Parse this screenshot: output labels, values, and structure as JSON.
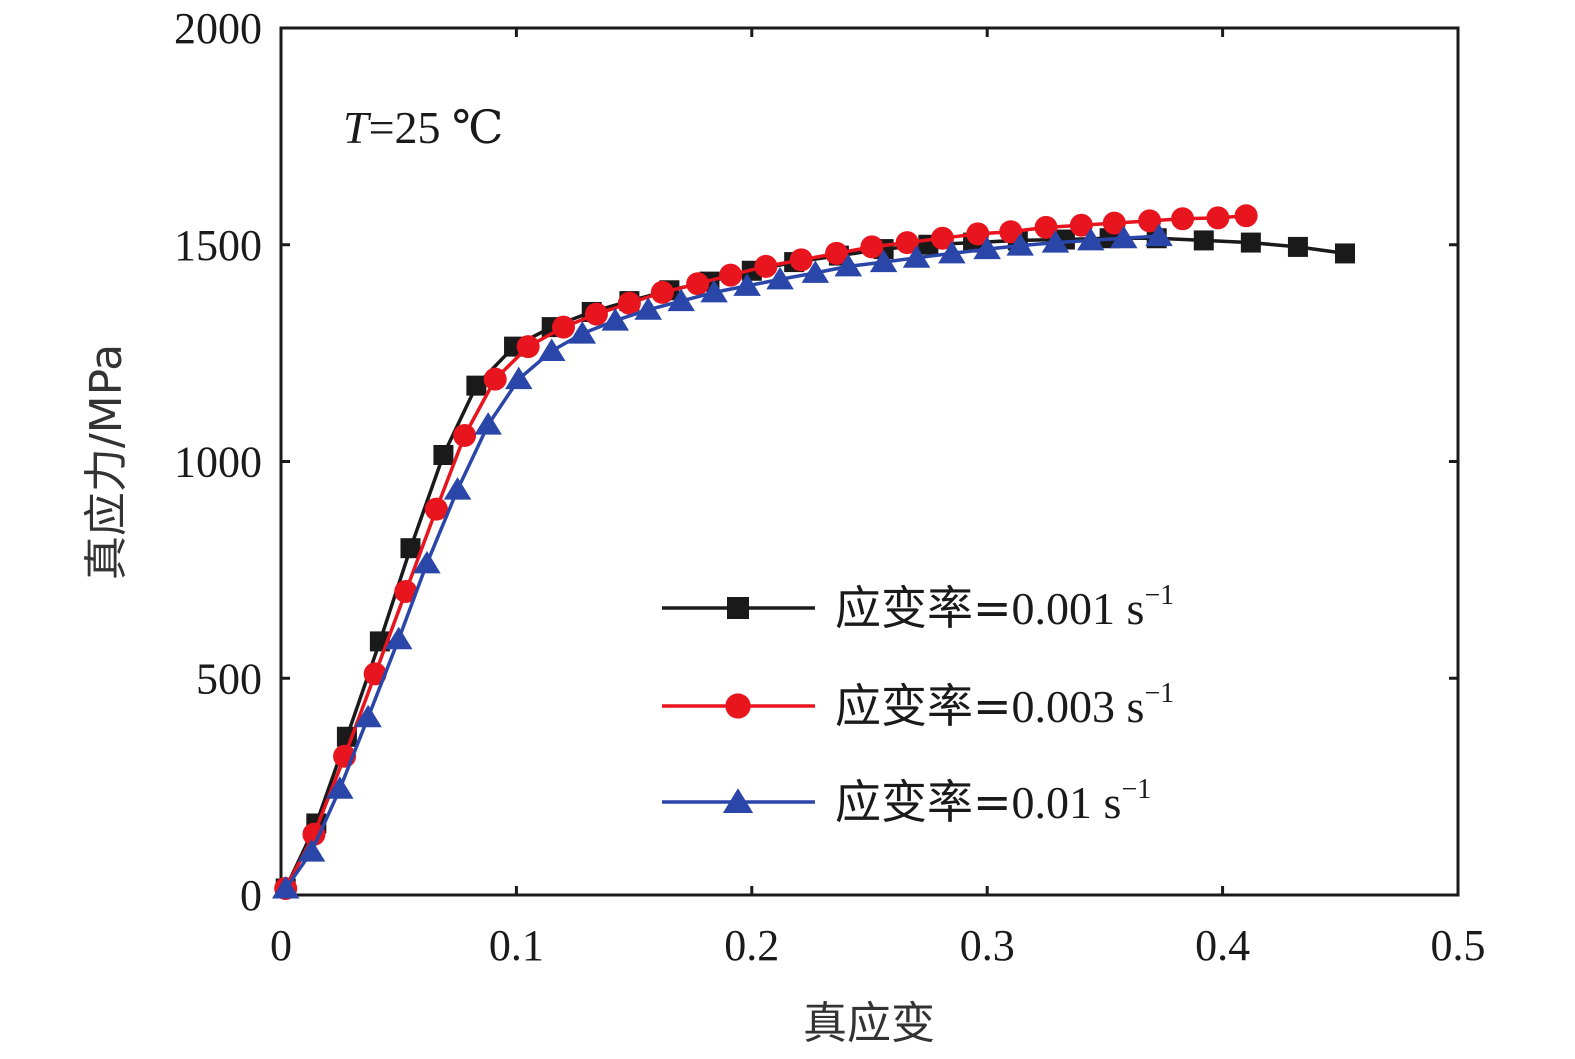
{
  "chart_data": {
    "type": "line",
    "xlabel": "真应变",
    "ylabel": "真应力/MPa",
    "xlim": [
      0,
      0.5
    ],
    "ylim": [
      0,
      2000
    ],
    "x_ticks": [
      "0",
      "0.1",
      "0.2",
      "0.3",
      "0.4",
      "0.5"
    ],
    "y_ticks": [
      "0",
      "500",
      "1000",
      "1500",
      "2000"
    ],
    "x_tick_values": [
      0,
      0.1,
      0.2,
      0.3,
      0.4,
      0.5
    ],
    "y_tick_values": [
      0,
      500,
      1000,
      1500,
      2000
    ],
    "annotation": {
      "var": "T",
      "text": "=25 ℃"
    },
    "legend_position": "lower-right",
    "grid": false,
    "series": [
      {
        "label_prefix": "应变率=",
        "label_value": "0.001 s",
        "label_sup": "−1",
        "color": "#1a1a1a",
        "marker": "square",
        "x": [
          0.002,
          0.015,
          0.028,
          0.042,
          0.055,
          0.069,
          0.083,
          0.099,
          0.115,
          0.132,
          0.148,
          0.165,
          0.182,
          0.2,
          0.218,
          0.237,
          0.256,
          0.275,
          0.294,
          0.313,
          0.333,
          0.352,
          0.372,
          0.392,
          0.412,
          0.432,
          0.452
        ],
        "y": [
          15,
          165,
          365,
          585,
          800,
          1015,
          1175,
          1265,
          1310,
          1345,
          1370,
          1395,
          1415,
          1440,
          1460,
          1475,
          1490,
          1500,
          1505,
          1510,
          1512,
          1515,
          1515,
          1510,
          1505,
          1495,
          1480
        ]
      },
      {
        "label_prefix": "应变率=",
        "label_value": "0.003 s",
        "label_sup": "−1",
        "color": "#e8141e",
        "marker": "circle",
        "x": [
          0.002,
          0.014,
          0.027,
          0.04,
          0.053,
          0.066,
          0.078,
          0.091,
          0.105,
          0.12,
          0.134,
          0.148,
          0.162,
          0.177,
          0.191,
          0.206,
          0.221,
          0.236,
          0.251,
          0.266,
          0.281,
          0.296,
          0.31,
          0.325,
          0.34,
          0.354,
          0.369,
          0.383,
          0.398,
          0.41
        ],
        "y": [
          15,
          140,
          320,
          510,
          700,
          890,
          1060,
          1190,
          1265,
          1310,
          1340,
          1365,
          1390,
          1410,
          1430,
          1450,
          1465,
          1480,
          1495,
          1505,
          1515,
          1525,
          1530,
          1540,
          1545,
          1550,
          1555,
          1560,
          1562,
          1567
        ]
      },
      {
        "label_prefix": "应变率=",
        "label_value": "0.01 s",
        "label_sup": "−1",
        "color": "#2a46a8",
        "marker": "triangle",
        "x": [
          0.002,
          0.013,
          0.025,
          0.037,
          0.05,
          0.062,
          0.075,
          0.088,
          0.101,
          0.115,
          0.128,
          0.142,
          0.156,
          0.17,
          0.184,
          0.198,
          0.212,
          0.227,
          0.241,
          0.256,
          0.27,
          0.285,
          0.3,
          0.314,
          0.329,
          0.344,
          0.358,
          0.373
        ],
        "y": [
          15,
          100,
          245,
          410,
          590,
          765,
          935,
          1085,
          1190,
          1255,
          1295,
          1325,
          1350,
          1370,
          1390,
          1405,
          1420,
          1435,
          1450,
          1460,
          1470,
          1480,
          1490,
          1498,
          1505,
          1510,
          1515,
          1520
        ]
      }
    ]
  }
}
